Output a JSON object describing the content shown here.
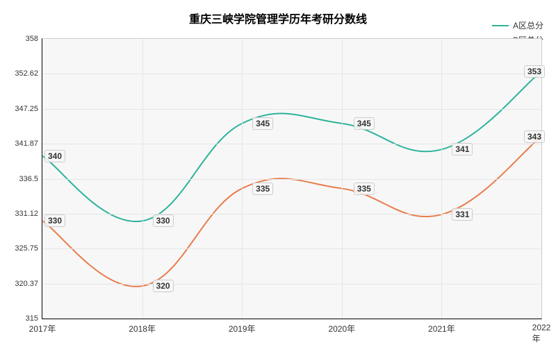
{
  "chart": {
    "type": "line",
    "title": "重庆三峡学院管理学历年考研分数线",
    "title_fontsize": 16,
    "background_color": "#ffffff",
    "plot_bg_color": "#f7f7f7",
    "grid_color": "#e5e5e5",
    "axis_color": "#000000",
    "label_fontsize": 12,
    "xlim": [
      2017,
      2022
    ],
    "ylim": [
      315,
      358
    ],
    "yticks": [
      315,
      320.37,
      325.75,
      331.12,
      336.5,
      341.87,
      347.25,
      352.62,
      358
    ],
    "ytick_labels": [
      "315",
      "320.37",
      "325.75",
      "331.12",
      "336.5",
      "341.87",
      "347.25",
      "352.62",
      "358"
    ],
    "xticks": [
      2017,
      2018,
      2019,
      2020,
      2021,
      2022
    ],
    "xtick_labels": [
      "2017年",
      "2018年",
      "2019年",
      "2020年",
      "2021年",
      "2022年"
    ],
    "legend_position": "top-right",
    "line_width": 2,
    "curve": "smooth",
    "series": [
      {
        "name": "A区总分",
        "color": "#2bb39a",
        "values": [
          340,
          330,
          345,
          345,
          341,
          353
        ],
        "label_offsets": [
          [
            18,
            0
          ],
          [
            30,
            0
          ],
          [
            30,
            0
          ],
          [
            32,
            0
          ],
          [
            30,
            0
          ],
          [
            -10,
            0
          ]
        ]
      },
      {
        "name": "B区总分",
        "color": "#e87c4a",
        "values": [
          330,
          320,
          335,
          335,
          331,
          343
        ],
        "label_offsets": [
          [
            18,
            0
          ],
          [
            30,
            0
          ],
          [
            30,
            0
          ],
          [
            32,
            0
          ],
          [
            30,
            0
          ],
          [
            -10,
            0
          ]
        ]
      }
    ]
  }
}
